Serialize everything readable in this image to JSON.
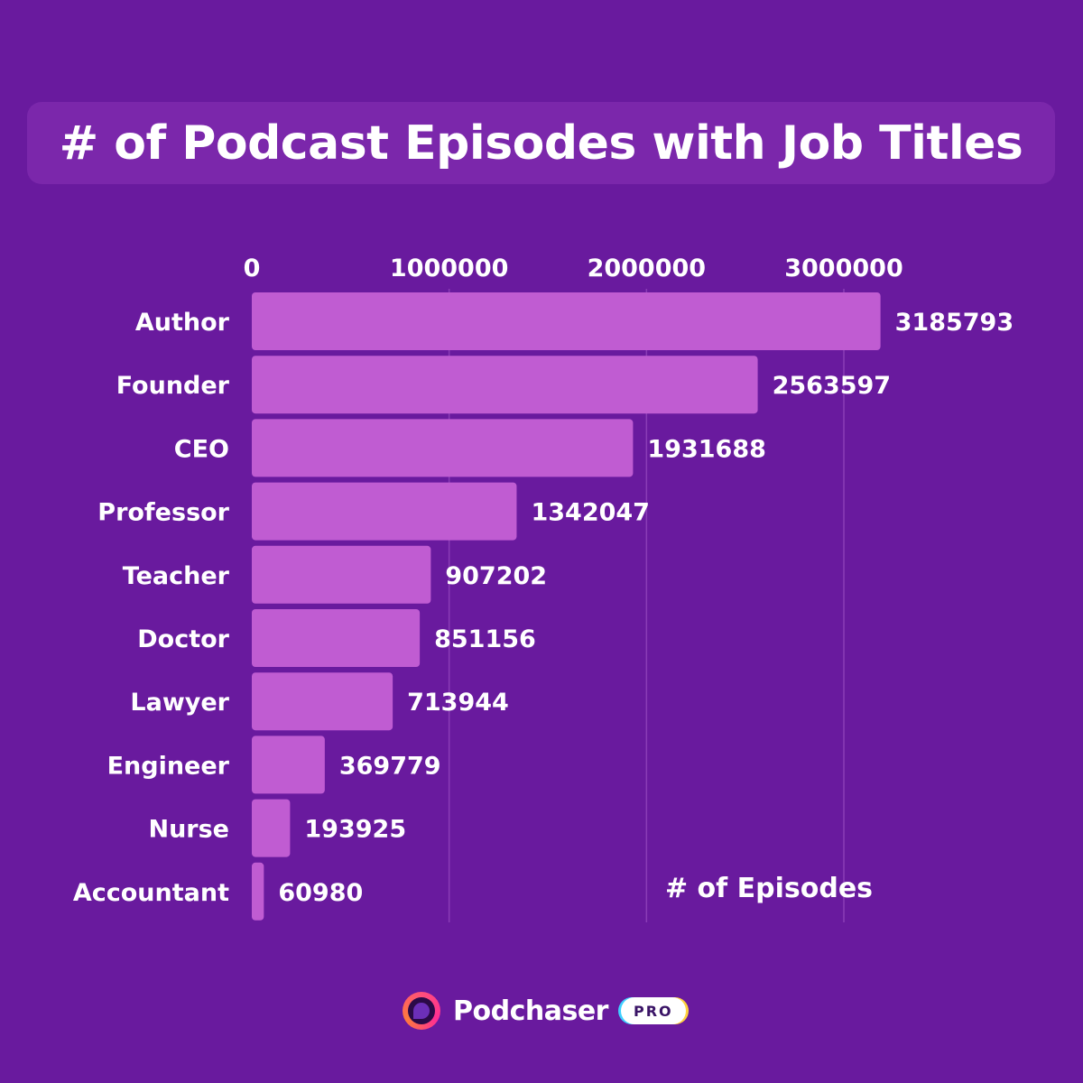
{
  "chart_data": {
    "type": "bar",
    "orientation": "horizontal",
    "title": "# of Podcast Episodes with Job Titles",
    "xlabel": "# of Episodes",
    "ylabel": "",
    "categories": [
      "Author",
      "Founder",
      "CEO",
      "Professor",
      "Teacher",
      "Doctor",
      "Lawyer",
      "Engineer",
      "Nurse",
      "Accountant"
    ],
    "values": [
      3185793,
      2563597,
      1931688,
      1342047,
      907202,
      851156,
      713944,
      369779,
      193925,
      60980
    ],
    "xticks": [
      0,
      1000000,
      2000000,
      3000000
    ],
    "xlim": [
      0,
      3000000
    ],
    "grid": "vertical",
    "axis_position": "top",
    "bar_color": "#c05cd2"
  },
  "brand": {
    "logo": "podchaser-logo-icon",
    "name": "Podchaser",
    "badge": "PRO"
  },
  "colors": {
    "background": "#691a9e",
    "title_box": "#7b27ab",
    "text": "#ffffff"
  }
}
